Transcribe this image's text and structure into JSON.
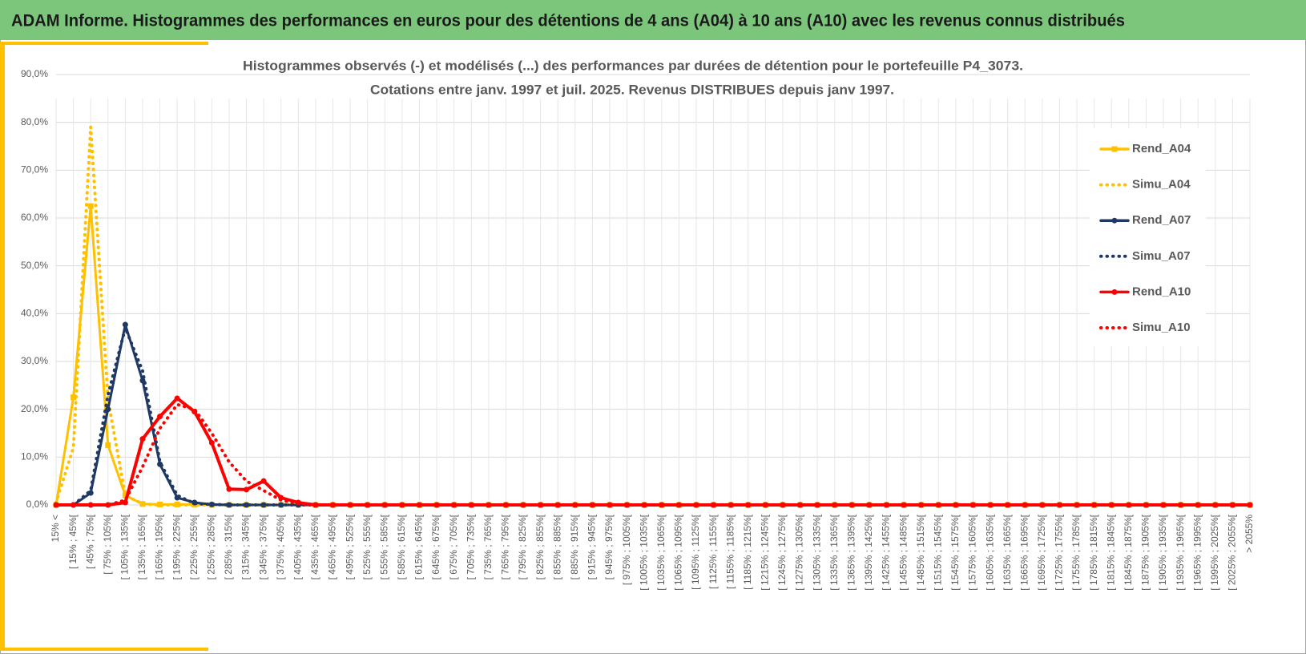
{
  "header": {
    "title": "ADAM Informe. Histogrammes des performances en euros pour des détentions de 4 ans (A04) à 10 ans (A10) avec les revenus connus distribués"
  },
  "chart_data": {
    "type": "line",
    "title": [
      "Histogrammes observés (-) et modélisés (...) des performances par durées de détention pour  le portefeuille P4_3073.",
      "Cotations entre janv. 1997 et juil. 2025. Revenus DISTRIBUES depuis janv 1997."
    ],
    "categories": [
      "15% <",
      "[ 15% ; 45%[",
      "[ 45% ; 75%[",
      "[ 75% ; 105%[",
      "[ 105% ; 135%[",
      "[ 135% ; 165%[",
      "[ 165% ; 195%[",
      "[ 195% ; 225%[",
      "[ 225% ; 255%[",
      "[ 255% ; 285%[",
      "[ 285% ; 315%[",
      "[ 315% ; 345%[",
      "[ 345% ; 375%[",
      "[ 375% ; 405%[",
      "[ 405% ; 435%[",
      "[ 435% ; 465%[",
      "[ 465% ; 495%[",
      "[ 495% ; 525%[",
      "[ 525% ; 555%[",
      "[ 555% ; 585%[",
      "[ 585% ; 615%[",
      "[ 615% ; 645%[",
      "[ 645% ; 675%[",
      "[ 675% ; 705%[",
      "[ 705% ; 735%[",
      "[ 735% ; 765%[",
      "[ 765% ; 795%[",
      "[ 795% ; 825%[",
      "[ 825% ; 855%[",
      "[ 855% ; 885%[",
      "[ 885% ; 915%[",
      "[ 915% ; 945%[",
      "[ 945% ; 975%[",
      "[ 975% ; 1005%[",
      "[ 1005% ; 1035%[",
      "[ 1035% ; 1065%[",
      "[ 1065% ; 1095%[",
      "[ 1095% ; 1125%[",
      "[ 1125% ; 1155%[",
      "[ 1155% ; 1185%[",
      "[ 1185% ; 1215%[",
      "[ 1215% ; 1245%[",
      "[ 1245% ; 1275%[",
      "[ 1275% ; 1305%[",
      "[ 1305% ; 1335%[",
      "[ 1335% ; 1365%[",
      "[ 1365% ; 1395%[",
      "[ 1395% ; 1425%[",
      "[ 1425% ; 1455%[",
      "[ 1455% ; 1485%[",
      "[ 1485% ; 1515%[",
      "[ 1515% ; 1545%[",
      "[ 1545% ; 1575%[",
      "[ 1575% ; 1605%[",
      "[ 1605% ; 1635%[",
      "[ 1635% ; 1665%[",
      "[ 1665% ; 1695%[",
      "[ 1695% ; 1725%[",
      "[ 1725% ; 1755%[",
      "[ 1755% ; 1785%[",
      "[ 1785% ; 1815%[",
      "[ 1815% ; 1845%[",
      "[ 1845% ; 1875%[",
      "[ 1875% ; 1905%[",
      "[ 1905% ; 1935%[",
      "[ 1935% ; 1965%[",
      "[ 1965% ; 1995%[",
      "[ 1995% ; 2025%[",
      "[ 2025% ; 2055%[",
      "> 2055%"
    ],
    "ylim": [
      0,
      90
    ],
    "yticks": [
      {
        "value": 0,
        "label": "0,0%"
      },
      {
        "value": 10,
        "label": "10,0%"
      },
      {
        "value": 20,
        "label": "20,0%"
      },
      {
        "value": 30,
        "label": "30,0%"
      },
      {
        "value": 40,
        "label": "40,0%"
      },
      {
        "value": 50,
        "label": "50,0%"
      },
      {
        "value": 60,
        "label": "60,0%"
      },
      {
        "value": 70,
        "label": "70,0%"
      },
      {
        "value": 80,
        "label": "80,0%"
      },
      {
        "value": 90,
        "label": "90,0%"
      }
    ],
    "grid": true,
    "legend": "right",
    "series": [
      {
        "name": "Rend_A04",
        "color": "#ffc000",
        "line_style": "solid",
        "marker": "square",
        "values": [
          0,
          22.5,
          62.5,
          12.5,
          2,
          0.2,
          0.1,
          0.1,
          0.1,
          0,
          0,
          0,
          0,
          0,
          0,
          0,
          0,
          0,
          0,
          0,
          0,
          0,
          0,
          0,
          0,
          0,
          0,
          0,
          0,
          0,
          0,
          0,
          0,
          0,
          0,
          0,
          0,
          0,
          0,
          0,
          0,
          0,
          0,
          0,
          0,
          0,
          0,
          0,
          0,
          0,
          0,
          0,
          0,
          0,
          0,
          0,
          0,
          0,
          0,
          0,
          0,
          0,
          0,
          0,
          0,
          0,
          0,
          0,
          0,
          0
        ]
      },
      {
        "name": "Simu_A04",
        "color": "#ffc000",
        "line_style": "dotted",
        "marker": "none",
        "values": [
          0.5,
          12,
          79,
          22,
          2,
          0.2,
          0,
          0,
          0,
          0,
          0,
          0,
          0,
          0,
          0,
          0,
          0,
          0,
          0,
          0,
          0,
          0,
          0,
          0,
          0,
          0,
          0,
          0,
          0,
          0,
          0,
          0,
          0,
          0,
          0,
          0,
          0,
          0,
          0,
          0,
          0,
          0,
          0,
          0,
          0,
          0,
          0,
          0,
          0,
          0,
          0,
          0,
          0,
          0,
          0,
          0,
          0,
          0,
          0,
          0,
          0,
          0,
          0,
          0,
          0,
          0,
          0,
          0,
          0,
          0
        ]
      },
      {
        "name": "Rend_A07",
        "color": "#1f3864",
        "line_style": "solid",
        "marker": "circle",
        "values": [
          0,
          0,
          2.5,
          20,
          37.7,
          26,
          8.5,
          1.5,
          0.5,
          0.1,
          0,
          0,
          0,
          0,
          0,
          0,
          0,
          0,
          0,
          0,
          0,
          0,
          0,
          0,
          0,
          0,
          0,
          0,
          0,
          0,
          0,
          0,
          0,
          0,
          0,
          0,
          0,
          0,
          0,
          0,
          0,
          0,
          0,
          0,
          0,
          0,
          0,
          0,
          0,
          0,
          0,
          0,
          0,
          0,
          0,
          0,
          0,
          0,
          0,
          0,
          0,
          0,
          0,
          0,
          0,
          0,
          0,
          0,
          0,
          0
        ]
      },
      {
        "name": "Simu_A07",
        "color": "#1f3864",
        "line_style": "dotted",
        "marker": "none",
        "values": [
          0,
          0,
          3,
          23,
          37,
          28,
          9,
          2,
          0.3,
          0.1,
          0,
          0,
          0,
          0,
          0,
          0,
          0,
          0,
          0,
          0,
          0,
          0,
          0,
          0,
          0,
          0,
          0,
          0,
          0,
          0,
          0,
          0,
          0,
          0,
          0,
          0,
          0,
          0,
          0,
          0,
          0,
          0,
          0,
          0,
          0,
          0,
          0,
          0,
          0,
          0,
          0,
          0,
          0,
          0,
          0,
          0,
          0,
          0,
          0,
          0,
          0,
          0,
          0,
          0,
          0,
          0,
          0,
          0,
          0,
          0
        ]
      },
      {
        "name": "Rend_A10",
        "color": "#ff0000",
        "line_style": "solid",
        "marker": "circle",
        "values": [
          0,
          0,
          0,
          0,
          0.5,
          13.8,
          18.5,
          22.3,
          19.5,
          13,
          3.3,
          3.2,
          5,
          1.5,
          0.5,
          0,
          0,
          0,
          0,
          0,
          0,
          0,
          0,
          0,
          0,
          0,
          0,
          0,
          0,
          0,
          0,
          0,
          0,
          0,
          0,
          0,
          0,
          0,
          0,
          0,
          0,
          0,
          0,
          0,
          0,
          0,
          0,
          0,
          0,
          0,
          0,
          0,
          0,
          0,
          0,
          0,
          0,
          0,
          0,
          0,
          0,
          0,
          0,
          0,
          0,
          0,
          0,
          0,
          0,
          0
        ]
      },
      {
        "name": "Simu_A10",
        "color": "#ff0000",
        "line_style": "dotted",
        "marker": "none",
        "values": [
          0,
          0,
          0,
          0,
          1,
          8,
          16,
          21,
          20,
          15,
          9,
          5,
          3,
          1,
          0.3,
          0,
          0,
          0,
          0,
          0,
          0,
          0,
          0,
          0,
          0,
          0,
          0,
          0,
          0,
          0,
          0,
          0,
          0,
          0,
          0,
          0,
          0,
          0,
          0,
          0,
          0,
          0,
          0,
          0,
          0,
          0,
          0,
          0,
          0,
          0,
          0,
          0,
          0,
          0,
          0,
          0,
          0,
          0,
          0,
          0,
          0,
          0,
          0,
          0,
          0,
          0,
          0,
          0,
          0,
          0
        ]
      }
    ]
  }
}
